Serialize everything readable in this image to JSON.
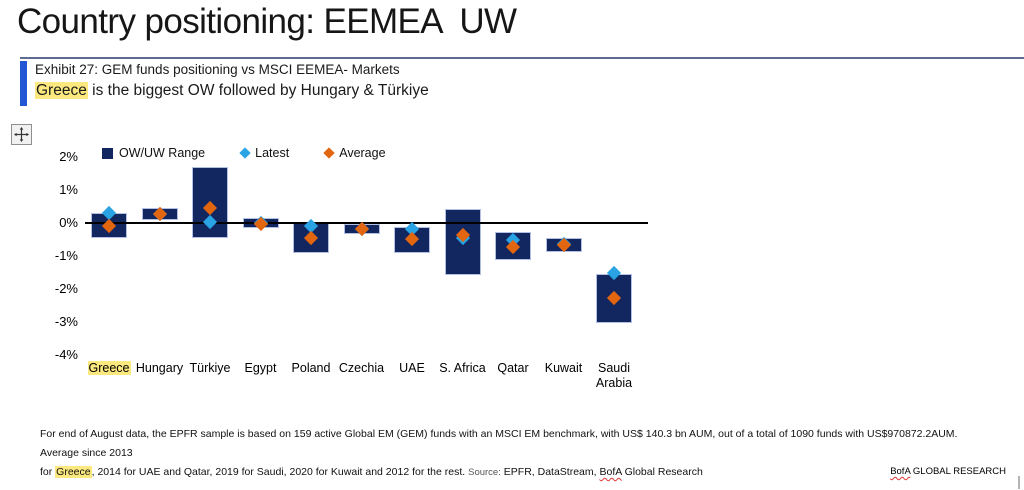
{
  "header": {
    "title": "Country positioning: EEMEA  UW"
  },
  "exhibit": {
    "label": "Exhibit 27: GEM funds positioning vs MSCI EEMEA- Markets",
    "subtitle_highlight": "Greece",
    "subtitle_rest": " is the biggest OW followed by Hungary & Türkiye"
  },
  "icons": {
    "move_handle": "move-crosshair-icon"
  },
  "chart_data": {
    "type": "bar",
    "subtype": "floating-range-bars-with-diamond-markers",
    "title": "",
    "xlabel": "",
    "ylabel": "",
    "ylim": [
      -4,
      2
    ],
    "grid": false,
    "legend_position": "top",
    "categories": [
      "Greece",
      "Hungary",
      "Türkiye",
      "Egypt",
      "Poland",
      "Czechia",
      "UAE",
      "S. Africa",
      "Qatar",
      "Kuwait",
      "Saudi Arabia"
    ],
    "highlighted_category": "Greece",
    "yticks": [
      {
        "value": 2,
        "label": "2%"
      },
      {
        "value": 1,
        "label": "1%"
      },
      {
        "value": 0,
        "label": "0%"
      },
      {
        "value": -1,
        "label": "-1%"
      },
      {
        "value": -2,
        "label": "-2%"
      },
      {
        "value": -3,
        "label": "-3%"
      },
      {
        "value": -4,
        "label": "-4%"
      }
    ],
    "series": [
      {
        "name": "OW/UW Range",
        "type": "range-bar",
        "color": "#12265f",
        "low": [
          -0.45,
          0.1,
          -0.46,
          -0.15,
          -0.9,
          -0.33,
          -0.9,
          -1.57,
          -1.11,
          -0.89,
          -3.03
        ],
        "high": [
          0.3,
          0.45,
          1.69,
          0.15,
          0.01,
          -0.02,
          -0.13,
          0.42,
          -0.26,
          -0.44,
          -1.55
        ]
      },
      {
        "name": "Latest",
        "type": "scatter-diamond",
        "color": "#29a3e3",
        "values": [
          0.3,
          0.27,
          0.02,
          -0.01,
          -0.1,
          -0.19,
          -0.18,
          -0.44,
          -0.51,
          -0.63,
          -1.52
        ]
      },
      {
        "name": "Average",
        "type": "scatter-diamond",
        "color": "#e2650f",
        "values": [
          -0.1,
          0.27,
          0.46,
          -0.02,
          -0.46,
          -0.17,
          -0.48,
          -0.36,
          -0.73,
          -0.66,
          -2.26
        ]
      }
    ]
  },
  "footnote": {
    "line1": "For end of August data, the EPFR sample is based on 159 active Global EM (GEM) funds with an MSCI EM benchmark, with US$ 140.3 bn AUM, out of a total of 1090 funds with US$970872.2AUM. Average since 2013",
    "line2_prefix": "for ",
    "line2_highlight": "Greece",
    "line2_mid": ", 2014 for UAE and Qatar, 2019 for Saudi, 2020 for Kuwait and 2012 for the rest. ",
    "source_label": "Source:",
    "source_pre": " EPFR, DataStream, ",
    "source_bofa": "BofA",
    "source_post": " Global Research"
  },
  "branding": {
    "bofa": "BofA",
    "rest": " GLOBAL RESEARCH"
  },
  "colors": {
    "bar": "#12265f",
    "latest": "#29a3e3",
    "average": "#e2650f",
    "highlight": "#fbe87e",
    "accent_bar": "#2356d4",
    "title_rule": "#5e6c92"
  }
}
